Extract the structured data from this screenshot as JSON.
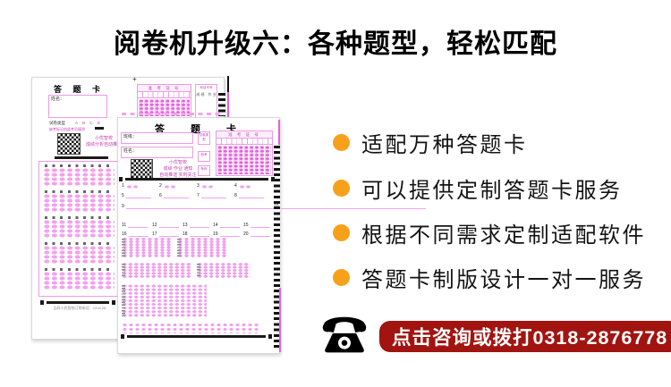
{
  "page": {
    "title": "阅卷机升级六：各种题型，轻松匹配"
  },
  "features": [
    {
      "label": "适配万种答题卡"
    },
    {
      "label": "可以提供定制答题卡服务"
    },
    {
      "label": "根据不同需求定制适配软件"
    },
    {
      "label": "答题卡制版设计一对一服务"
    }
  ],
  "contact": {
    "banner": "点击咨询或拨打0318-2876778",
    "icon": "telephone-icon"
  },
  "colors": {
    "accent_orange": "#F7A11A",
    "banner_red": "#A21410",
    "card_pink_border": "#EC9AE6",
    "bubble_pink": "#F2A2EE",
    "magenta_text": "#C23FB2",
    "title_black": "#000000"
  },
  "card_back": {
    "title": "答 题 卡",
    "name_label": "姓名：",
    "paper_type_label": "试卷类型",
    "paper_type_options": "A  B  C  D",
    "instruction": "缺考标记由监考员填涂",
    "qr_caption_1": "小优智校",
    "qr_caption_2": "成绩分析自动推送",
    "exam_no_header": "准 考 证 号",
    "subject_box_title": "科目代号",
    "subject_rows": "成 绩　作 业",
    "footer": "品科小优智校订购电话：0318-28",
    "plus_mark": "+"
  },
  "card_front": {
    "title": "答　题　卡",
    "class_label": "班级：",
    "name_label": "姓名：",
    "qr_caption_1": "小优智校",
    "qr_caption_2": "成绩 作业 通知",
    "qr_caption_3": "自动推送 实时关注",
    "exam_no_header": "准 考 证 号",
    "minibox_1": "试卷类型",
    "minibox_2": "缺考",
    "minibox_3": "条码",
    "questions": {
      "bubble_row": [
        "1",
        "2",
        "3",
        "4"
      ],
      "short_lines": [
        "5",
        "6",
        "7",
        "8"
      ],
      "long_lines": [
        "9",
        "10"
      ],
      "mid_lines_1": [
        "11",
        "12",
        "13",
        "14",
        "15"
      ],
      "mid_lines_2": [
        "16",
        "17",
        "18",
        "19",
        "20"
      ]
    }
  }
}
